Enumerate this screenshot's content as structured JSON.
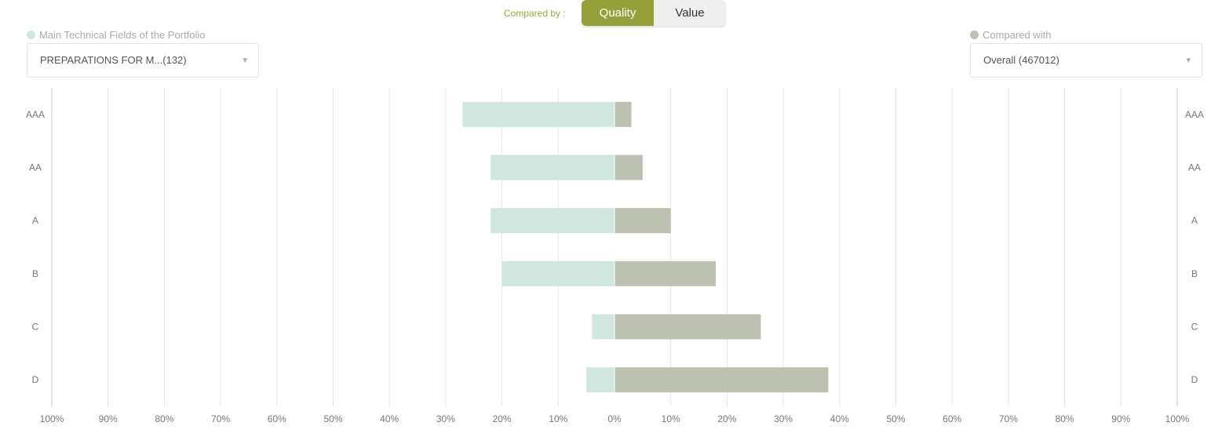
{
  "header": {
    "compared_by_label": "Compared by :",
    "toggle": {
      "active_label": "Quality",
      "inactive_label": "Value"
    }
  },
  "left_panel": {
    "legend_label": "Main Technical Fields of the Portfolio",
    "legend_color": "#d0e6de",
    "select_value": "PREPARATIONS FOR M...(132)"
  },
  "right_panel": {
    "legend_label": "Compared with",
    "legend_color": "#bdc1b2",
    "select_value": "Overall (467012)"
  },
  "colors": {
    "accent": "#96a03b",
    "left_bar": "#d0e6de",
    "right_bar": "#bdc1b2",
    "grid": "#e6e6e6"
  },
  "chart_data": {
    "type": "bar",
    "orientation": "horizontal-diverging",
    "categories": [
      "AAA",
      "AA",
      "A",
      "B",
      "C",
      "D"
    ],
    "series": [
      {
        "name": "Main Technical Fields of the Portfolio",
        "side": "left",
        "values": [
          27,
          22,
          22,
          20,
          4,
          5
        ]
      },
      {
        "name": "Compared with",
        "side": "right",
        "values": [
          3,
          5,
          10,
          18,
          26,
          38
        ]
      }
    ],
    "x_ticks": [
      "100%",
      "90%",
      "80%",
      "70%",
      "60%",
      "50%",
      "40%",
      "30%",
      "20%",
      "10%",
      "0%",
      "10%",
      "20%",
      "30%",
      "40%",
      "50%",
      "60%",
      "70%",
      "80%",
      "90%",
      "100%"
    ],
    "xlim": [
      -100,
      100
    ],
    "grid": true
  }
}
